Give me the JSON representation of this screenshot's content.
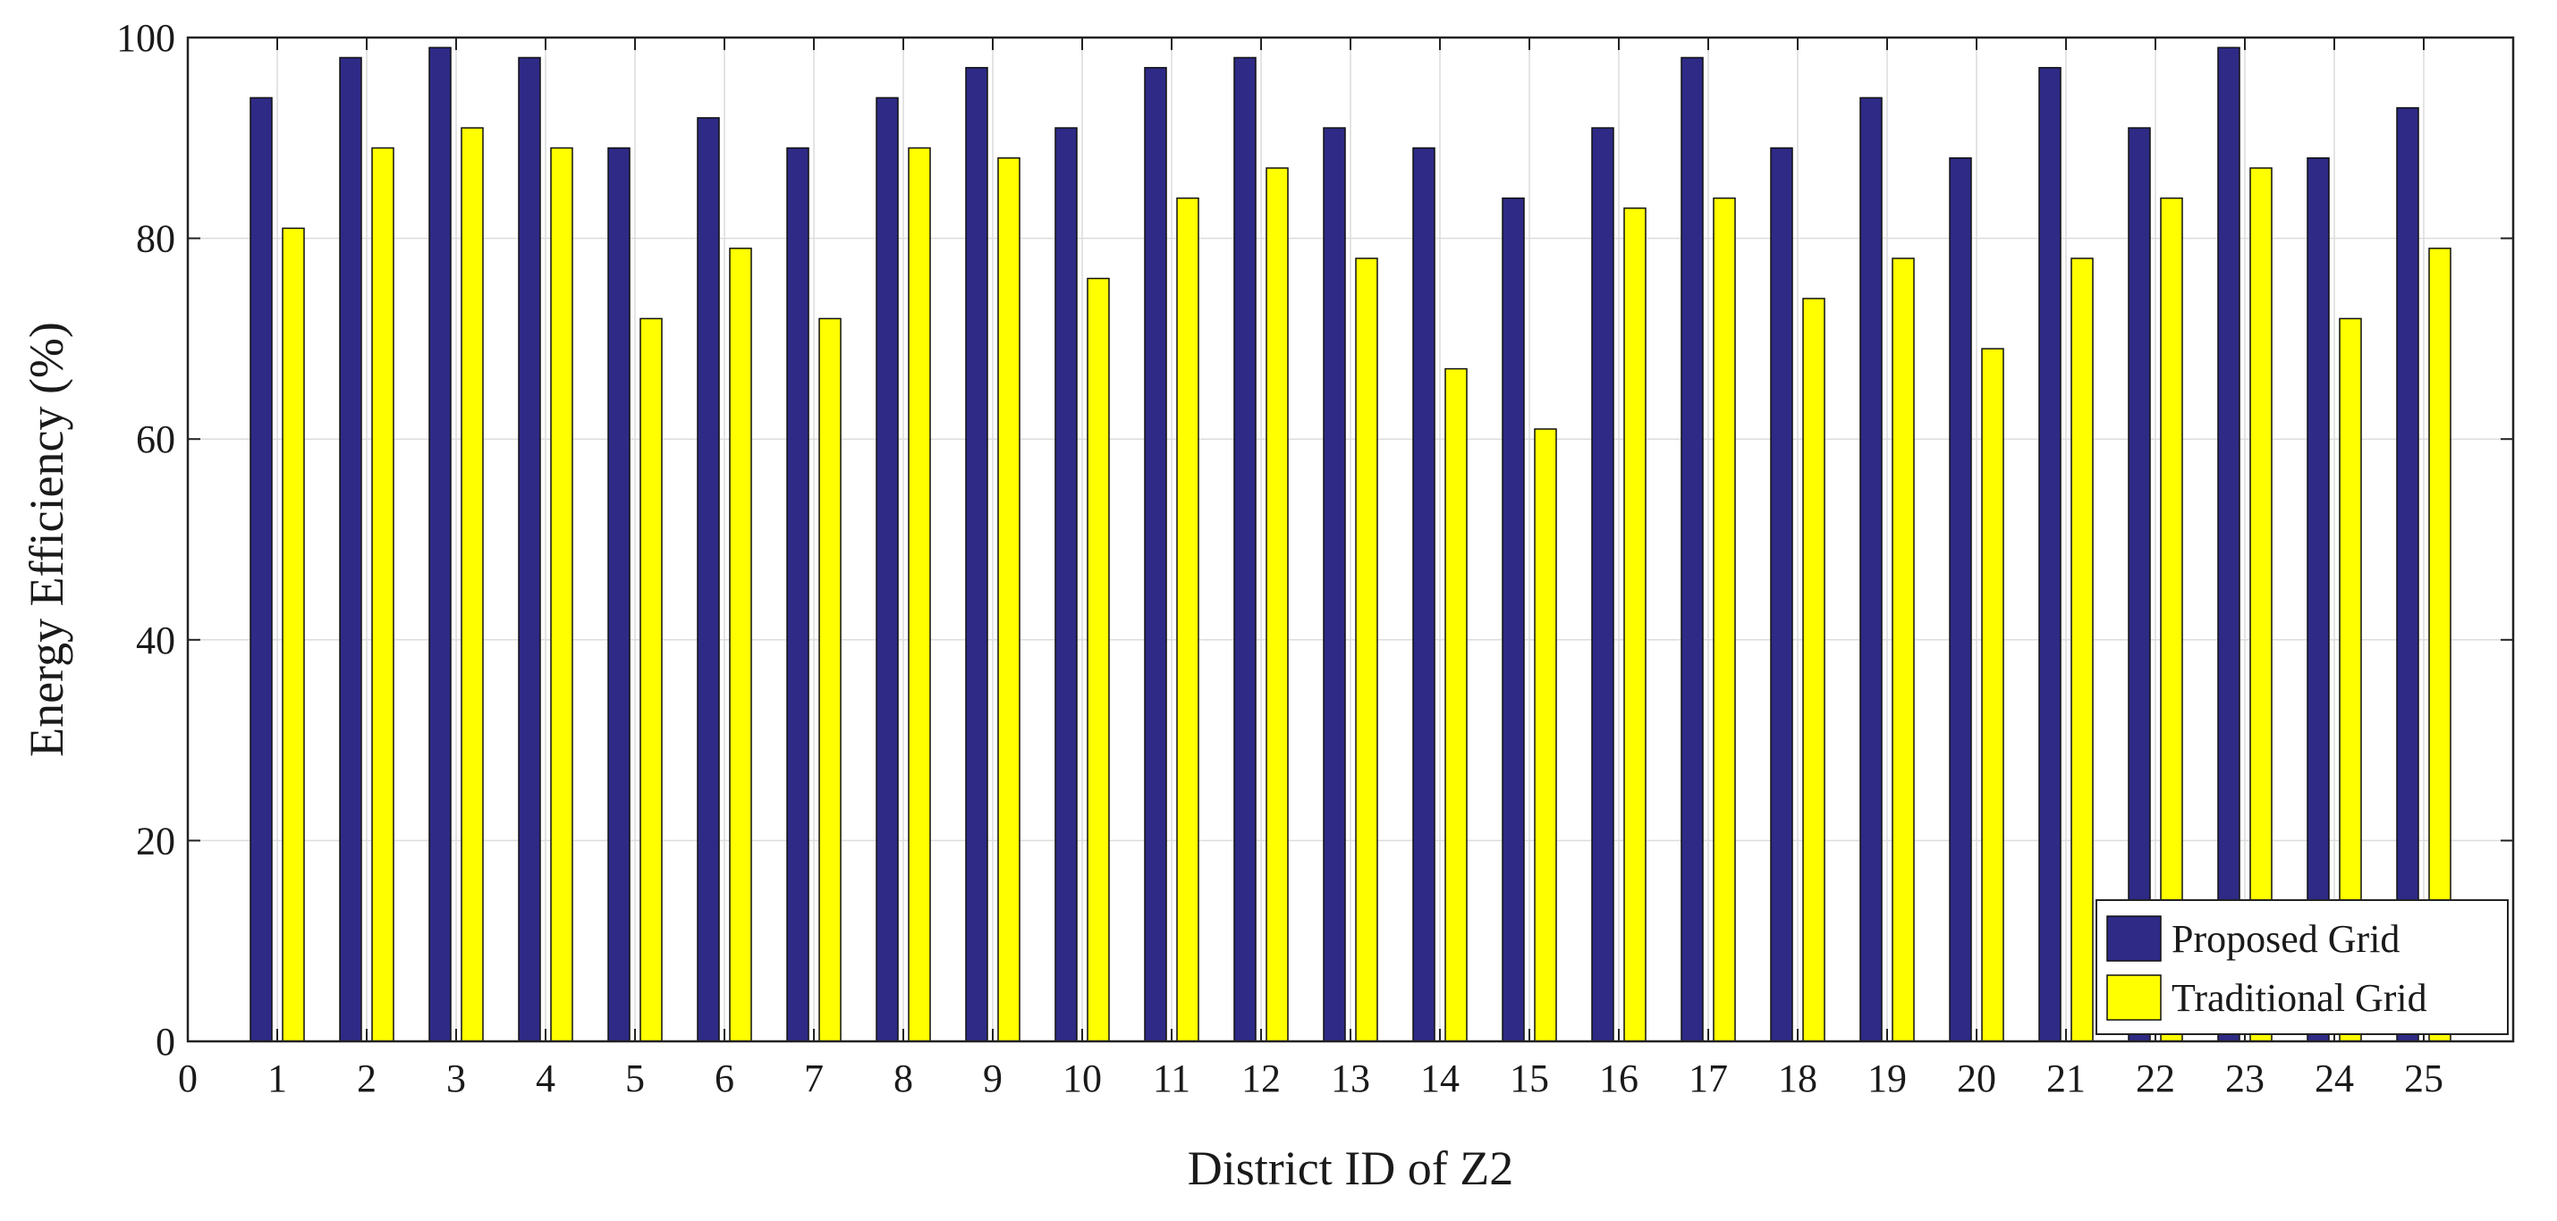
{
  "chart_data": {
    "type": "bar",
    "xlabel": "District ID of Z2",
    "ylabel": "Energy Efficiency (%)",
    "categories": [
      "1",
      "2",
      "3",
      "4",
      "5",
      "6",
      "7",
      "8",
      "9",
      "10",
      "11",
      "12",
      "13",
      "14",
      "15",
      "16",
      "17",
      "18",
      "19",
      "20",
      "21",
      "22",
      "23",
      "24",
      "25"
    ],
    "x_ticks": [
      "0",
      "1",
      "2",
      "3",
      "4",
      "5",
      "6",
      "7",
      "8",
      "9",
      "10",
      "11",
      "12",
      "13",
      "14",
      "15",
      "16",
      "17",
      "18",
      "19",
      "20",
      "21",
      "22",
      "23",
      "24",
      "25"
    ],
    "xlim": [
      0,
      26
    ],
    "ylim": [
      0,
      100
    ],
    "y_ticks": [
      0,
      20,
      40,
      60,
      80,
      100
    ],
    "grid": true,
    "legend_position": "bottom-right",
    "series": [
      {
        "name": "Proposed Grid",
        "color": "#2e2a86",
        "values": [
          94,
          98,
          99,
          98,
          89,
          92,
          89,
          94,
          97,
          91,
          97,
          98,
          91,
          89,
          84,
          91,
          98,
          89,
          94,
          88,
          97,
          91,
          99,
          88,
          93
        ]
      },
      {
        "name": "Traditional Grid",
        "color": "#ffff00",
        "values": [
          81,
          89,
          91,
          89,
          72,
          79,
          72,
          89,
          88,
          76,
          84,
          87,
          78,
          67,
          61,
          83,
          84,
          74,
          78,
          69,
          78,
          84,
          87,
          72,
          79
        ]
      }
    ]
  }
}
